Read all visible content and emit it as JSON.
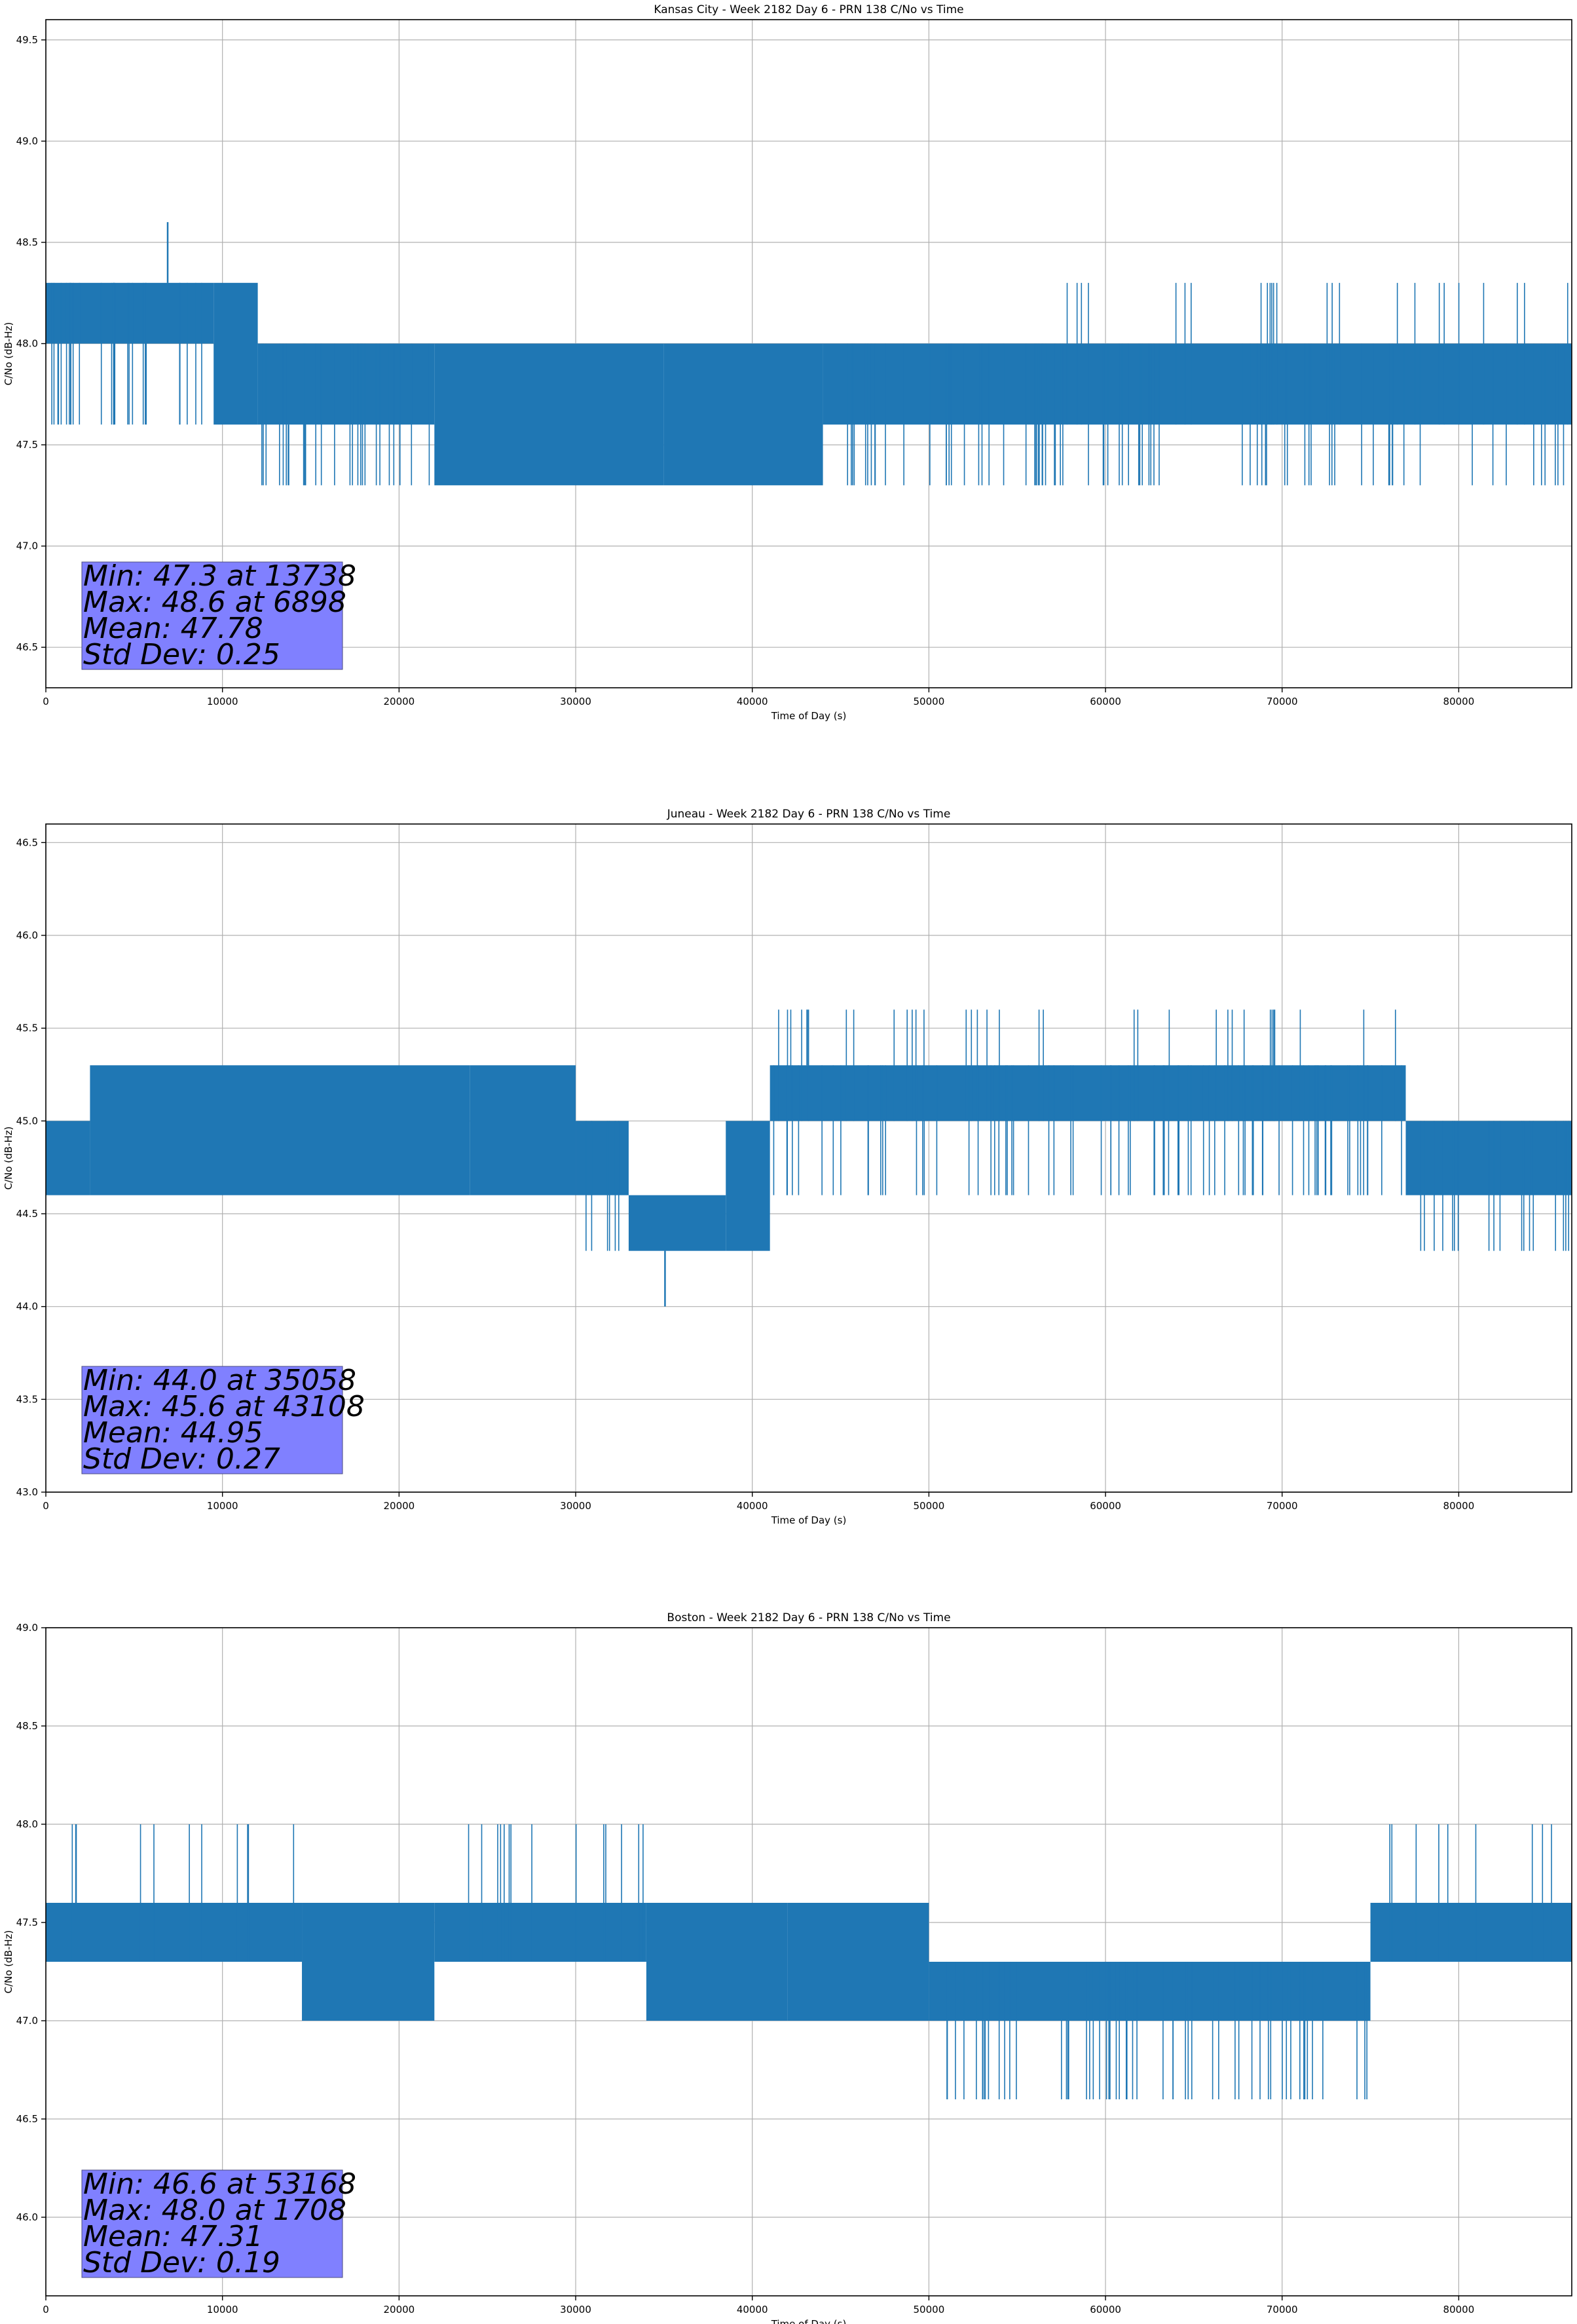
{
  "figure": {
    "background": "#ffffff",
    "line_color": "#1f77b4",
    "grid_color": "#b0b0b0",
    "stats_box_color": "#8080ff"
  },
  "chart_data": [
    {
      "type": "line",
      "title": "Kansas City - Week 2182 Day 6 - PRN 138 C/No vs Time",
      "xlabel": "Time of Day (s)",
      "ylabel": "C/No (dB-Hz)",
      "xlim": [
        0,
        86400
      ],
      "ylim": [
        46.3,
        49.6
      ],
      "xticks": [
        0,
        10000,
        20000,
        30000,
        40000,
        50000,
        60000,
        70000,
        80000
      ],
      "yticks": [
        46.5,
        47.0,
        47.5,
        48.0,
        48.5,
        49.0,
        49.5
      ],
      "grid": true,
      "series": [
        {
          "name": "C/No",
          "description": "dense 1 s samples, quantized values; shown as per-segment band ranges",
          "segments": [
            {
              "x": [
                0,
                9500
              ],
              "band": [
                48.0,
                48.3
              ],
              "dips_to": 47.6
            },
            {
              "x": [
                9500,
                12000
              ],
              "band": [
                47.6,
                48.3
              ],
              "dips_to": 47.6
            },
            {
              "x": [
                12000,
                22000
              ],
              "band": [
                47.6,
                48.0
              ],
              "dips_to": 47.3
            },
            {
              "x": [
                22000,
                35000
              ],
              "band": [
                47.3,
                48.0
              ],
              "dips_to": 47.3
            },
            {
              "x": [
                35000,
                44000
              ],
              "band": [
                47.3,
                48.0
              ],
              "dips_to": 47.3
            },
            {
              "x": [
                44000,
                56000
              ],
              "band": [
                47.6,
                48.0
              ],
              "dips_to": 47.3
            },
            {
              "x": [
                56000,
                86400
              ],
              "band": [
                47.6,
                48.0
              ],
              "spikes_to": 48.3,
              "dips_to": 47.3
            }
          ],
          "spikes": [
            {
              "x": 6898,
              "y": 48.6
            }
          ],
          "dips": [
            {
              "x": 700,
              "y": 47.6
            },
            {
              "x": 13738,
              "y": 47.3
            }
          ]
        }
      ],
      "annotation": {
        "lines": [
          "Min: 47.3 at 13738",
          "Max: 48.6 at 6898",
          "Mean: 47.78",
          "Std Dev: 0.25"
        ],
        "min": 47.3,
        "min_x": 13738,
        "max": 48.6,
        "max_x": 6898,
        "mean": 47.78,
        "std": 0.25
      }
    },
    {
      "type": "line",
      "title": "Juneau - Week 2182 Day 6 - PRN 138 C/No vs Time",
      "xlabel": "Time of Day (s)",
      "ylabel": "C/No (dB-Hz)",
      "xlim": [
        0,
        86400
      ],
      "ylim": [
        43.0,
        46.6
      ],
      "xticks": [
        0,
        10000,
        20000,
        30000,
        40000,
        50000,
        60000,
        70000,
        80000
      ],
      "yticks": [
        43.0,
        43.5,
        44.0,
        44.5,
        45.0,
        45.5,
        46.0,
        46.5
      ],
      "grid": true,
      "series": [
        {
          "name": "C/No",
          "description": "dense 1 s samples, quantized values; shown as per-segment band ranges",
          "segments": [
            {
              "x": [
                0,
                2500
              ],
              "band": [
                44.6,
                45.0
              ]
            },
            {
              "x": [
                2500,
                24000
              ],
              "band": [
                44.6,
                45.3
              ]
            },
            {
              "x": [
                24000,
                30000
              ],
              "band": [
                44.6,
                45.3
              ]
            },
            {
              "x": [
                30000,
                33000
              ],
              "band": [
                44.6,
                45.0
              ],
              "dips_to": 44.3
            },
            {
              "x": [
                33000,
                38500
              ],
              "band": [
                44.3,
                44.6
              ]
            },
            {
              "x": [
                38500,
                41000
              ],
              "band": [
                44.3,
                45.0
              ]
            },
            {
              "x": [
                41000,
                77000
              ],
              "band": [
                45.0,
                45.3
              ],
              "spikes_to": 45.6,
              "dips_to": 44.6
            },
            {
              "x": [
                77000,
                86400
              ],
              "band": [
                44.6,
                45.0
              ],
              "dips_to": 44.3
            }
          ],
          "spikes": [
            {
              "x": 43108,
              "y": 45.6
            }
          ],
          "dips": [
            {
              "x": 35058,
              "y": 44.0
            }
          ]
        }
      ],
      "annotation": {
        "lines": [
          "Min: 44.0 at 35058",
          "Max: 45.6 at 43108",
          "Mean: 44.95",
          "Std Dev: 0.27"
        ],
        "min": 44.0,
        "min_x": 35058,
        "max": 45.6,
        "max_x": 43108,
        "mean": 44.95,
        "std": 0.27
      }
    },
    {
      "type": "line",
      "title": "Boston - Week 2182 Day 6 - PRN 138 C/No vs Time",
      "xlabel": "Time of Day (s)",
      "ylabel": "C/No (dB-Hz)",
      "xlim": [
        0,
        86400
      ],
      "ylim": [
        45.6,
        49.0
      ],
      "xticks": [
        0,
        10000,
        20000,
        30000,
        40000,
        50000,
        60000,
        70000,
        80000
      ],
      "yticks": [
        46.0,
        46.5,
        47.0,
        47.5,
        48.0,
        48.5,
        49.0
      ],
      "grid": true,
      "series": [
        {
          "name": "C/No",
          "description": "dense 1 s samples, quantized values; shown as per-segment band ranges",
          "segments": [
            {
              "x": [
                0,
                14500
              ],
              "band": [
                47.3,
                47.6
              ],
              "spikes_to": 48.0
            },
            {
              "x": [
                14500,
                22000
              ],
              "band": [
                47.0,
                47.6
              ]
            },
            {
              "x": [
                22000,
                34000
              ],
              "band": [
                47.3,
                47.6
              ],
              "spikes_to": 48.0
            },
            {
              "x": [
                34000,
                42000
              ],
              "band": [
                47.0,
                47.6
              ]
            },
            {
              "x": [
                42000,
                50000
              ],
              "band": [
                47.0,
                47.6
              ]
            },
            {
              "x": [
                50000,
                75000
              ],
              "band": [
                47.0,
                47.3
              ],
              "dips_to": 46.6
            },
            {
              "x": [
                75000,
                86400
              ],
              "band": [
                47.3,
                47.6
              ],
              "spikes_to": 48.0
            }
          ],
          "spikes": [
            {
              "x": 1708,
              "y": 48.0
            }
          ],
          "dips": [
            {
              "x": 53168,
              "y": 46.6
            }
          ]
        }
      ],
      "annotation": {
        "lines": [
          "Min: 46.6 at 53168",
          "Max: 48.0 at 1708",
          "Mean: 47.31",
          "Std Dev: 0.19"
        ],
        "min": 46.6,
        "min_x": 53168,
        "max": 48.0,
        "max_x": 1708,
        "mean": 47.31,
        "std": 0.19
      }
    }
  ]
}
